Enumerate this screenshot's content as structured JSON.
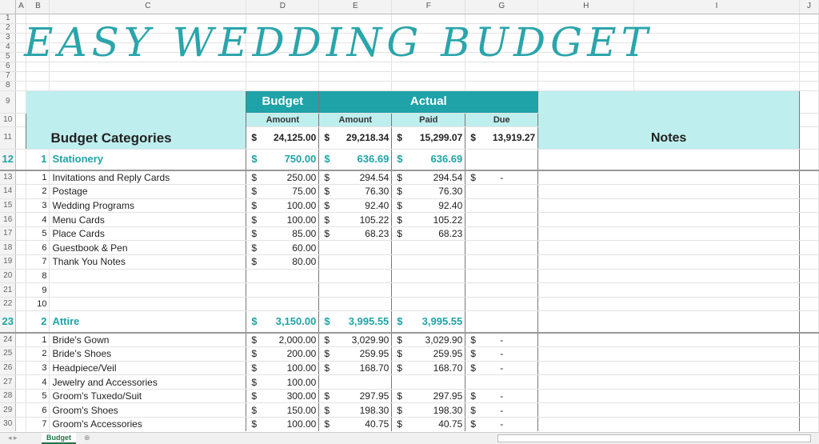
{
  "columns": [
    "A",
    "B",
    "C",
    "D",
    "E",
    "F",
    "G",
    "H",
    "I",
    "J"
  ],
  "title": "EASY WEDDING BUDGET",
  "header": {
    "categories": "Budget Categories",
    "budget": "Budget",
    "actual": "Actual",
    "amount": "Amount",
    "actual_amount": "Amount",
    "paid": "Paid",
    "due": "Due",
    "notes": "Notes",
    "totals": {
      "budget": "24,125.00",
      "actual": "29,218.34",
      "paid": "15,299.07",
      "due": "13,919.27"
    }
  },
  "currency": "$",
  "sections": [
    {
      "row": 12,
      "num": "1",
      "name": "Stationery",
      "budget": "750.00",
      "actual": "636.69",
      "paid": "636.69",
      "items": [
        {
          "n": "1",
          "name": "Invitations and Reply Cards",
          "budget": "250.00",
          "actual": "294.54",
          "paid": "294.54",
          "due": "-"
        },
        {
          "n": "2",
          "name": "Postage",
          "budget": "75.00",
          "actual": "76.30",
          "paid": "76.30",
          "due": ""
        },
        {
          "n": "3",
          "name": "Wedding Programs",
          "budget": "100.00",
          "actual": "92.40",
          "paid": "92.40",
          "due": ""
        },
        {
          "n": "4",
          "name": "Menu Cards",
          "budget": "100.00",
          "actual": "105.22",
          "paid": "105.22",
          "due": ""
        },
        {
          "n": "5",
          "name": "Place Cards",
          "budget": "85.00",
          "actual": "68.23",
          "paid": "68.23",
          "due": ""
        },
        {
          "n": "6",
          "name": "Guestbook & Pen",
          "budget": "60.00",
          "actual": "",
          "paid": "",
          "due": ""
        },
        {
          "n": "7",
          "name": "Thank You Notes",
          "budget": "80.00",
          "actual": "",
          "paid": "",
          "due": ""
        },
        {
          "n": "8",
          "name": "",
          "budget": "",
          "actual": "",
          "paid": "",
          "due": ""
        },
        {
          "n": "9",
          "name": "",
          "budget": "",
          "actual": "",
          "paid": "",
          "due": ""
        },
        {
          "n": "10",
          "name": "",
          "budget": "",
          "actual": "",
          "paid": "",
          "due": ""
        }
      ]
    },
    {
      "row": 23,
      "num": "2",
      "name": "Attire",
      "budget": "3,150.00",
      "actual": "3,995.55",
      "paid": "3,995.55",
      "items": [
        {
          "n": "1",
          "name": "Bride's Gown",
          "budget": "2,000.00",
          "actual": "3,029.90",
          "paid": "3,029.90",
          "due": "-"
        },
        {
          "n": "2",
          "name": "Bride's Shoes",
          "budget": "200.00",
          "actual": "259.95",
          "paid": "259.95",
          "due": "-"
        },
        {
          "n": "3",
          "name": "Headpiece/Veil",
          "budget": "100.00",
          "actual": "168.70",
          "paid": "168.70",
          "due": "-"
        },
        {
          "n": "4",
          "name": "Jewelry and Accessories",
          "budget": "100.00",
          "actual": "",
          "paid": "",
          "due": ""
        },
        {
          "n": "5",
          "name": "Groom's Tuxedo/Suit",
          "budget": "300.00",
          "actual": "297.95",
          "paid": "297.95",
          "due": "-"
        },
        {
          "n": "6",
          "name": "Groom's Shoes",
          "budget": "150.00",
          "actual": "198.30",
          "paid": "198.30",
          "due": "-"
        },
        {
          "n": "7",
          "name": "Groom's Accessories",
          "budget": "100.00",
          "actual": "40.75",
          "paid": "40.75",
          "due": "-"
        }
      ]
    }
  ],
  "sheet_tabs": [
    "Budget"
  ],
  "colors": {
    "accent": "#1fa3a8",
    "header_fill": "#bfeeee"
  }
}
